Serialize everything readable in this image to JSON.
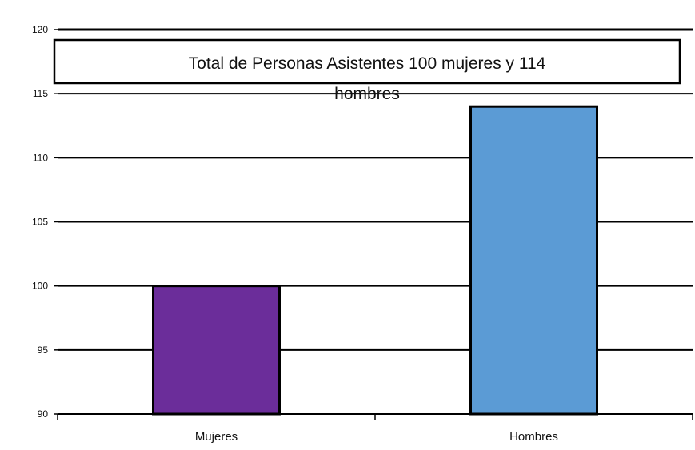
{
  "chart_data": {
    "type": "bar",
    "title_lines": [
      "Total de Personas Asistentes 100 mujeres y 114",
      "hombres"
    ],
    "categories": [
      "Mujeres",
      "Hombres"
    ],
    "values": [
      100,
      114
    ],
    "colors": [
      "#6b2d9a",
      "#5b9bd5"
    ],
    "ylim": [
      90,
      120
    ],
    "yticks": [
      90,
      95,
      100,
      105,
      110,
      115,
      120
    ],
    "ytick_labels": [
      "90",
      "95",
      "100",
      "105",
      "110",
      "115",
      "120"
    ],
    "grid": true,
    "legend": "none"
  }
}
